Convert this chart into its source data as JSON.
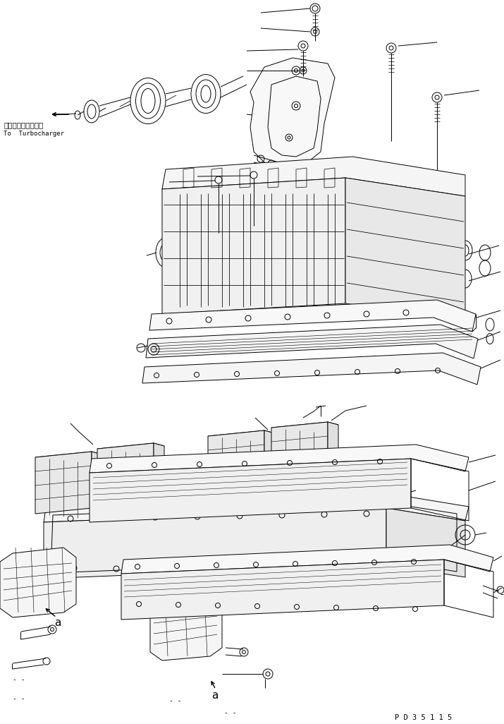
{
  "background_color": "#ffffff",
  "line_color": "#000000",
  "line_width": 0.7,
  "label_turbo_ja": "ターボチャージャヘ",
  "label_turbo_en": "To  Turbocharger",
  "label_a1": "a",
  "label_a2": "a",
  "label_pd": "P D 3 5 1 1 5",
  "fig_width": 7.15,
  "fig_height": 10.26,
  "dpi": 100
}
